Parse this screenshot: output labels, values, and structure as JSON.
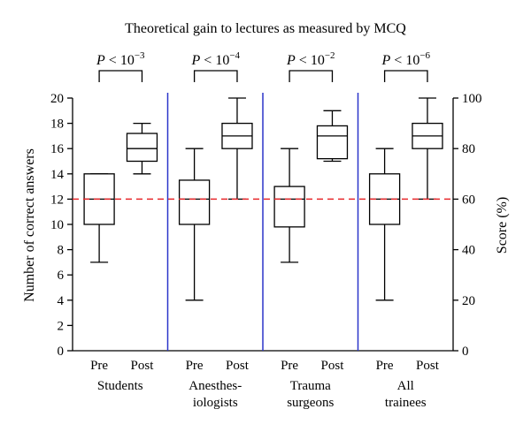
{
  "chart_data": {
    "type": "boxplot",
    "title": "Theoretical gain to lectures as measured by MCQ",
    "ylabel_left": "Number of correct answers",
    "ylabel_right": "Score (%)",
    "ylim": [
      0,
      20
    ],
    "yticks_left": [
      "0",
      "2",
      "4",
      "6",
      "8",
      "10",
      "12",
      "14",
      "16",
      "18",
      "20"
    ],
    "yticks_right": [
      "0",
      "20",
      "40",
      "60",
      "80",
      "100"
    ],
    "reference_line": {
      "value": 12,
      "color": "#e8272b",
      "style": "dashed"
    },
    "divider_color": "#2b35c9",
    "groups": [
      {
        "name_lines": [
          "Students"
        ],
        "p_value": {
          "prefix": "P",
          "text": " < 10",
          "exp": "−3"
        },
        "boxes": [
          {
            "label": "Pre",
            "min": 7,
            "q1": 10,
            "median": 12,
            "q3": 14,
            "max": 14
          },
          {
            "label": "Post",
            "min": 14,
            "q1": 15,
            "median": 16,
            "q3": 17.2,
            "max": 18
          }
        ]
      },
      {
        "name_lines": [
          "Anesthes-",
          "iologists"
        ],
        "p_value": {
          "prefix": "P",
          "text": " < 10",
          "exp": "−4"
        },
        "boxes": [
          {
            "label": "Pre",
            "min": 4,
            "q1": 10,
            "median": 12,
            "q3": 13.5,
            "max": 16
          },
          {
            "label": "Post",
            "min": 12,
            "q1": 16,
            "median": 17,
            "q3": 18,
            "max": 20
          }
        ]
      },
      {
        "name_lines": [
          "Trauma",
          "surgeons"
        ],
        "p_value": {
          "prefix": "P",
          "text": " < 10",
          "exp": "−2"
        },
        "boxes": [
          {
            "label": "Pre",
            "min": 7,
            "q1": 9.8,
            "median": 12,
            "q3": 13,
            "max": 16
          },
          {
            "label": "Post",
            "min": 15,
            "q1": 15.2,
            "median": 17,
            "q3": 17.8,
            "max": 19
          }
        ]
      },
      {
        "name_lines": [
          "All",
          "trainees"
        ],
        "p_value": {
          "prefix": "P",
          "text": " < 10",
          "exp": "−6"
        },
        "boxes": [
          {
            "label": "Pre",
            "min": 4,
            "q1": 10,
            "median": 12,
            "q3": 14,
            "max": 16
          },
          {
            "label": "Post",
            "min": 12,
            "q1": 16,
            "median": 17,
            "q3": 18,
            "max": 20
          }
        ]
      }
    ]
  }
}
